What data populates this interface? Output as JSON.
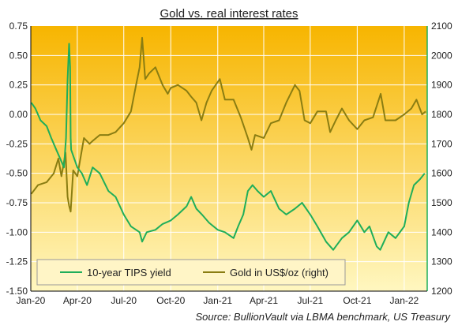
{
  "chart_data": {
    "type": "line",
    "title": "Gold vs. real interest rates",
    "source": "Source: BullionVault via LBMA benchmark, US Treasury",
    "colors": {
      "tips": "#1fae5a",
      "gold": "#8a7d12",
      "bg_top": "#f7b500",
      "bg_bottom": "#fff7c0",
      "grid": "#ffffff",
      "axis_left": "#000000",
      "axis_right": "#1fae5a"
    },
    "x_ticks": [
      "Jan-20",
      "Apr-20",
      "Jul-20",
      "Oct-20",
      "Jan-21",
      "Apr-21",
      "Jul-21",
      "Oct-21",
      "Jan-22"
    ],
    "x_range": [
      "2020-01-01",
      "2022-02-15"
    ],
    "y_left": {
      "min": -1.5,
      "max": 0.75,
      "ticks": [
        "0.75",
        "0.50",
        "0.25",
        "0.00",
        "-0.25",
        "-0.50",
        "-0.75",
        "-1.00",
        "-1.25",
        "-1.50"
      ]
    },
    "y_right": {
      "min": 1200,
      "max": 2100,
      "ticks": [
        "2100",
        "2000",
        "1900",
        "1800",
        "1700",
        "1600",
        "1500",
        "1400",
        "1300",
        "1200"
      ]
    },
    "legend": {
      "position": "bottom-left",
      "items": [
        "10-year TIPS yield",
        "Gold in US$/oz (right)"
      ]
    },
    "series": [
      {
        "name": "10-year TIPS yield",
        "axis": "left",
        "x": [
          "2020-01-02",
          "2020-01-10",
          "2020-01-20",
          "2020-02-01",
          "2020-02-10",
          "2020-02-20",
          "2020-03-01",
          "2020-03-06",
          "2020-03-10",
          "2020-03-13",
          "2020-03-16",
          "2020-03-18",
          "2020-03-19",
          "2020-03-20",
          "2020-03-24",
          "2020-04-01",
          "2020-04-10",
          "2020-04-20",
          "2020-05-01",
          "2020-05-15",
          "2020-06-01",
          "2020-06-15",
          "2020-07-01",
          "2020-07-15",
          "2020-08-01",
          "2020-08-06",
          "2020-08-15",
          "2020-09-01",
          "2020-09-15",
          "2020-10-01",
          "2020-10-15",
          "2020-11-01",
          "2020-11-10",
          "2020-11-20",
          "2020-12-01",
          "2020-12-15",
          "2021-01-01",
          "2021-01-15",
          "2021-02-01",
          "2021-02-10",
          "2021-02-20",
          "2021-03-01",
          "2021-03-10",
          "2021-03-20",
          "2021-04-01",
          "2021-04-15",
          "2021-05-01",
          "2021-05-15",
          "2021-06-01",
          "2021-06-15",
          "2021-07-01",
          "2021-07-15",
          "2021-08-01",
          "2021-08-15",
          "2021-09-01",
          "2021-09-15",
          "2021-10-01",
          "2021-10-15",
          "2021-10-25",
          "2021-11-08",
          "2021-11-15",
          "2021-12-01",
          "2021-12-15",
          "2022-01-01",
          "2022-01-10",
          "2022-01-20",
          "2022-02-01",
          "2022-02-10"
        ],
        "values": [
          0.1,
          0.05,
          -0.05,
          -0.1,
          -0.2,
          -0.3,
          -0.4,
          -0.45,
          -0.2,
          0.3,
          0.6,
          0.4,
          -0.2,
          -0.3,
          -0.35,
          -0.45,
          -0.5,
          -0.6,
          -0.45,
          -0.5,
          -0.65,
          -0.7,
          -0.85,
          -0.95,
          -1.0,
          -1.08,
          -1.0,
          -0.98,
          -0.93,
          -0.9,
          -0.85,
          -0.78,
          -0.7,
          -0.8,
          -0.85,
          -0.92,
          -0.98,
          -1.0,
          -1.05,
          -0.95,
          -0.85,
          -0.65,
          -0.6,
          -0.65,
          -0.7,
          -0.65,
          -0.8,
          -0.85,
          -0.8,
          -0.75,
          -0.85,
          -0.95,
          -1.08,
          -1.15,
          -1.05,
          -1.0,
          -0.9,
          -1.0,
          -0.95,
          -1.12,
          -1.15,
          -1.0,
          -1.05,
          -0.95,
          -0.75,
          -0.6,
          -0.55,
          -0.5
        ]
      },
      {
        "name": "Gold in US$/oz (right)",
        "axis": "right",
        "x": [
          "2020-01-02",
          "2020-01-15",
          "2020-02-01",
          "2020-02-15",
          "2020-02-24",
          "2020-03-01",
          "2020-03-09",
          "2020-03-13",
          "2020-03-16",
          "2020-03-19",
          "2020-03-24",
          "2020-04-01",
          "2020-04-14",
          "2020-04-25",
          "2020-05-01",
          "2020-05-15",
          "2020-06-01",
          "2020-06-15",
          "2020-07-01",
          "2020-07-15",
          "2020-07-25",
          "2020-08-01",
          "2020-08-06",
          "2020-08-12",
          "2020-08-20",
          "2020-09-01",
          "2020-09-15",
          "2020-09-25",
          "2020-10-01",
          "2020-10-15",
          "2020-11-01",
          "2020-11-10",
          "2020-11-20",
          "2020-11-30",
          "2020-12-10",
          "2020-12-20",
          "2021-01-05",
          "2021-01-15",
          "2021-02-01",
          "2021-02-15",
          "2021-03-01",
          "2021-03-08",
          "2021-03-15",
          "2021-04-01",
          "2021-04-15",
          "2021-05-01",
          "2021-05-15",
          "2021-06-01",
          "2021-06-10",
          "2021-06-20",
          "2021-07-01",
          "2021-07-15",
          "2021-08-01",
          "2021-08-09",
          "2021-08-20",
          "2021-09-01",
          "2021-09-15",
          "2021-10-01",
          "2021-10-15",
          "2021-11-01",
          "2021-11-16",
          "2021-11-25",
          "2021-12-15",
          "2022-01-01",
          "2022-01-15",
          "2022-01-25",
          "2022-02-05",
          "2022-02-12"
        ],
        "values": [
          1530,
          1560,
          1570,
          1600,
          1650,
          1590,
          1670,
          1520,
          1490,
          1470,
          1610,
          1590,
          1720,
          1700,
          1710,
          1730,
          1730,
          1740,
          1770,
          1810,
          1900,
          1960,
          2060,
          1920,
          1940,
          1960,
          1900,
          1870,
          1890,
          1900,
          1880,
          1860,
          1840,
          1780,
          1840,
          1880,
          1920,
          1850,
          1850,
          1790,
          1720,
          1680,
          1730,
          1720,
          1770,
          1780,
          1840,
          1900,
          1880,
          1780,
          1770,
          1810,
          1810,
          1740,
          1780,
          1820,
          1780,
          1750,
          1780,
          1790,
          1870,
          1780,
          1780,
          1800,
          1820,
          1850,
          1800,
          1810
        ]
      }
    ]
  }
}
